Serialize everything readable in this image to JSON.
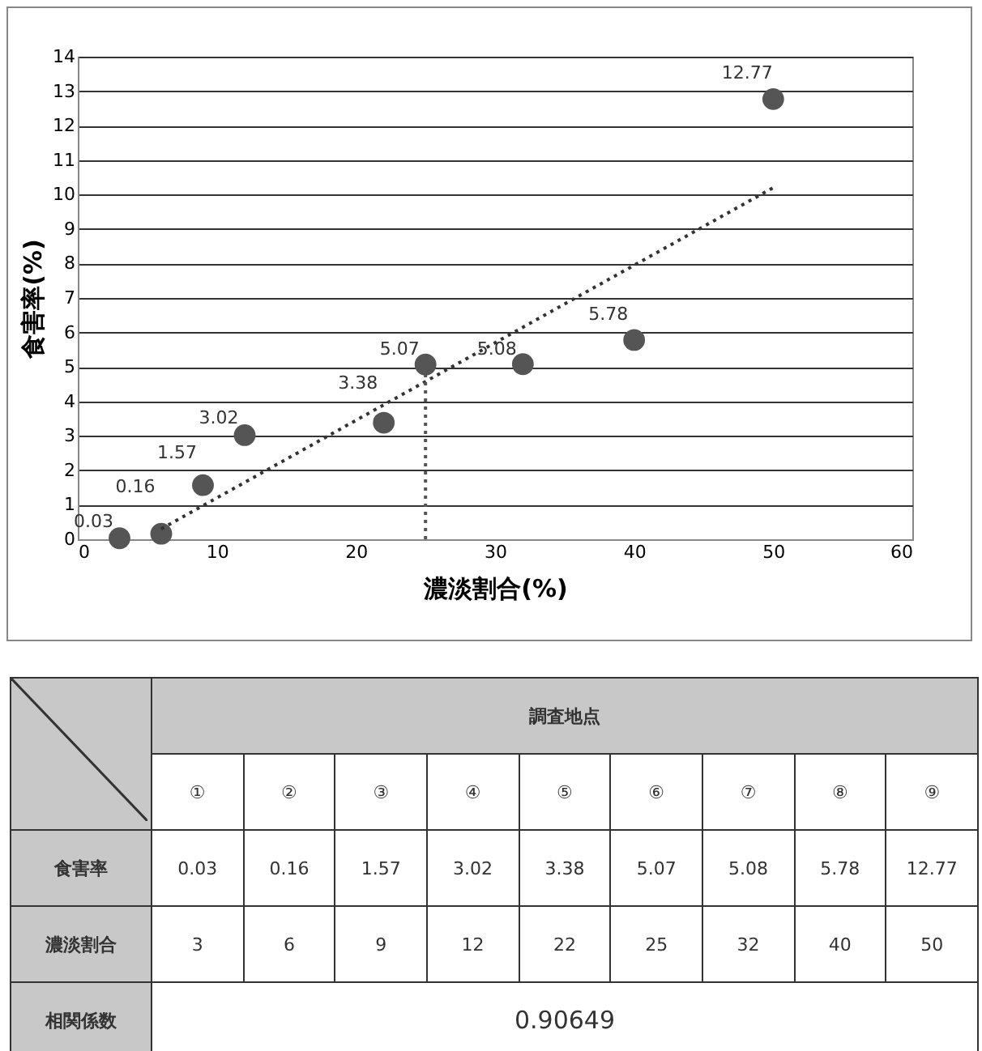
{
  "chart_data": {
    "type": "scatter",
    "xlabel": "濃淡割合(%)",
    "ylabel": "食害率(%)",
    "xlim": [
      0,
      60
    ],
    "xticks": [
      0,
      10,
      20,
      30,
      40,
      50,
      60
    ],
    "ylim": [
      0,
      14
    ],
    "yticks": [
      0,
      1,
      2,
      3,
      4,
      5,
      6,
      7,
      8,
      9,
      10,
      11,
      12,
      13,
      14
    ],
    "grid": "y",
    "data_labels": true,
    "series": [
      {
        "type": "scatter",
        "color": "#555555",
        "marker": "circle",
        "x": [
          3,
          6,
          9,
          12,
          22,
          25,
          32,
          40,
          50
        ],
        "values": [
          0.03,
          0.16,
          1.57,
          3.02,
          3.38,
          5.07,
          5.08,
          5.78,
          12.77
        ]
      },
      {
        "type": "line",
        "color": "#333333",
        "marker": "none",
        "line_style": "dotted",
        "x": [
          6,
          50
        ],
        "values": [
          0.3,
          10.2
        ],
        "value_labels": [
          null,
          null
        ]
      },
      {
        "type": "line",
        "color": "#555555",
        "marker": "none",
        "line_style": "dotted",
        "x": [
          25,
          25
        ],
        "values": [
          0,
          5.07
        ],
        "value_labels": [
          null,
          null
        ]
      }
    ],
    "annotations": [
      "調査地点",
      "①",
      "②",
      "③",
      "④",
      "⑤",
      "⑥",
      "⑦",
      "⑧",
      "⑨",
      "食害率",
      "0.03",
      "0.16",
      "1.57",
      "3.02",
      "3.38",
      "5.07",
      "5.08",
      "5.78",
      "12.77",
      "濃淡割合",
      "3",
      "6",
      "9",
      "12",
      "22",
      "25",
      "32",
      "40",
      "50",
      "相関係数",
      "0.90649"
    ]
  }
}
